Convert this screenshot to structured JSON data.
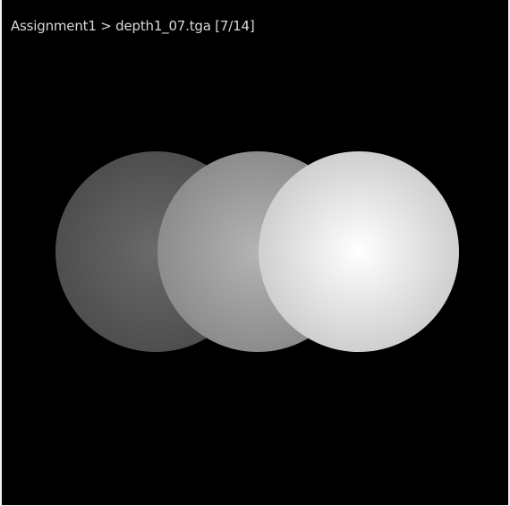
{
  "viewer": {
    "title": "Assignment1 > depth1_07.tga [7/14]",
    "background_color": "#000000"
  },
  "render": {
    "sphere_colors": [
      {
        "name": "dark",
        "center": "#6a6a6a",
        "edge": "#4e4e4e"
      },
      {
        "name": "mid",
        "center": "#b4b4b4",
        "edge": "#8c8c8c"
      },
      {
        "name": "bright",
        "center": "#ffffff",
        "edge": "#cfcfcf"
      }
    ]
  }
}
